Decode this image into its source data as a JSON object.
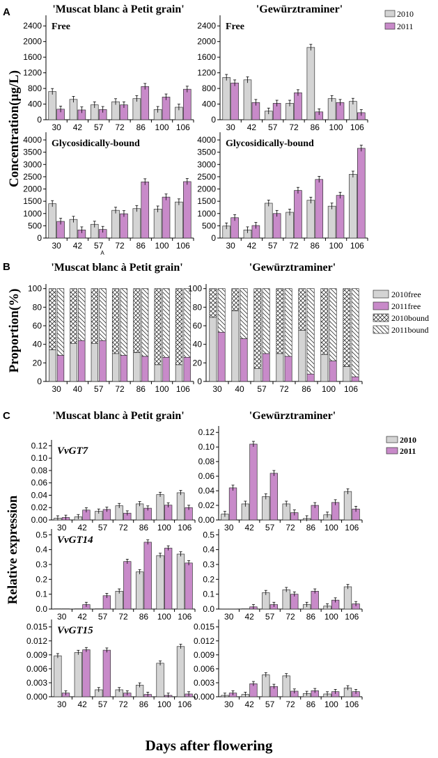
{
  "colors": {
    "c2010": "#d4d4d4",
    "c2011": "#c88ac9",
    "edge": "#333333"
  },
  "labels": {
    "panel_a": "A",
    "panel_b": "B",
    "panel_c": "C",
    "muscat": "'Muscat blanc à Petit grain'",
    "gewurz": "'Gewürztraminer'",
    "free": "Free",
    "bound": "Glycosidically-bound",
    "ylabel_a": "Concentration(μg/L)",
    "ylabel_b": "Proportion(%)",
    "ylabel_c": "Relative expression",
    "xlabel": "Days after flowering",
    "stray_a": "A"
  },
  "legend_a": [
    "2010",
    "2011"
  ],
  "legend_b": [
    "2010free",
    "2011free",
    "2010bound",
    "2011bound"
  ],
  "legend_c": [
    "2010",
    "2011"
  ],
  "chart_data": [
    {
      "id": "a_muscat_free",
      "type": "bar",
      "panel": "A",
      "cultivar": "'Muscat blanc à Petit grain'",
      "title": "Free",
      "categories": [
        "30",
        "42",
        "57",
        "72",
        "86",
        "100",
        "106"
      ],
      "yticks": [
        "0",
        "400",
        "800",
        "1200",
        "1600",
        "2000",
        "2400"
      ],
      "ylim": [
        0,
        2600
      ],
      "series": [
        {
          "name": "2010",
          "values": [
            720,
            520,
            380,
            460,
            540,
            260,
            320
          ]
        },
        {
          "name": "2011",
          "values": [
            270,
            250,
            260,
            380,
            850,
            580,
            780
          ]
        }
      ]
    },
    {
      "id": "a_gewurz_free",
      "type": "bar",
      "panel": "A",
      "cultivar": "'Gewürztraminer'",
      "title": "Free",
      "categories": [
        "30",
        "42",
        "57",
        "72",
        "86",
        "100",
        "106"
      ],
      "yticks": [
        "0",
        "400",
        "800",
        "1200",
        "1600",
        "2000",
        "2400"
      ],
      "ylim": [
        0,
        2600
      ],
      "series": [
        {
          "name": "2010",
          "values": [
            1080,
            1020,
            220,
            420,
            1850,
            540,
            470
          ]
        },
        {
          "name": "2011",
          "values": [
            940,
            440,
            420,
            690,
            200,
            440,
            180
          ]
        }
      ]
    },
    {
      "id": "a_muscat_bound",
      "type": "bar",
      "panel": "A",
      "cultivar": "'Muscat blanc à Petit grain'",
      "title": "Glycosidically-bound",
      "categories": [
        "30",
        "42",
        "57",
        "72",
        "86",
        "100",
        "106"
      ],
      "yticks": [
        "0",
        "500",
        "1000",
        "1500",
        "2000",
        "2500",
        "3000",
        "3500",
        "4000"
      ],
      "ylim": [
        0,
        4200
      ],
      "series": [
        {
          "name": "2010",
          "values": [
            1400,
            760,
            560,
            1130,
            1200,
            1180,
            1470
          ]
        },
        {
          "name": "2011",
          "values": [
            680,
            330,
            350,
            990,
            2290,
            1670,
            2300
          ]
        }
      ]
    },
    {
      "id": "a_gewurz_bound",
      "type": "bar",
      "panel": "A",
      "cultivar": "'Gewürztraminer'",
      "title": "Glycosidically-bound",
      "categories": [
        "30",
        "42",
        "57",
        "72",
        "86",
        "100",
        "106"
      ],
      "yticks": [
        "0",
        "500",
        "1000",
        "1500",
        "2000",
        "2500",
        "3000",
        "3500",
        "4000"
      ],
      "ylim": [
        0,
        4200
      ],
      "series": [
        {
          "name": "2010",
          "values": [
            490,
            330,
            1420,
            1050,
            1540,
            1300,
            2600
          ]
        },
        {
          "name": "2011",
          "values": [
            830,
            510,
            1000,
            1940,
            2390,
            1740,
            3660
          ]
        }
      ]
    },
    {
      "id": "b_muscat",
      "type": "bar",
      "panel": "B",
      "cultivar": "'Muscat blanc à Petit grain'",
      "title": "",
      "categories": [
        "30",
        "40",
        "57",
        "72",
        "86",
        "100",
        "106"
      ],
      "yticks": [
        "0",
        "20",
        "40",
        "60",
        "80",
        "100"
      ],
      "ylim": [
        0,
        102
      ],
      "series": [
        {
          "name": "2010free",
          "values": [
            34,
            41,
            41,
            30,
            31,
            18,
            18
          ]
        },
        {
          "name": "2011free",
          "values": [
            28,
            44,
            44,
            28,
            27,
            26,
            26
          ]
        }
      ]
    },
    {
      "id": "b_gewurz",
      "type": "bar",
      "panel": "B",
      "cultivar": "'Gewürztraminer'",
      "title": "",
      "categories": [
        "30",
        "40",
        "57",
        "72",
        "86",
        "100",
        "106"
      ],
      "yticks": [
        "0",
        "20",
        "40",
        "60",
        "80",
        "100"
      ],
      "ylim": [
        0,
        102
      ],
      "series": [
        {
          "name": "2010free",
          "values": [
            69,
            76,
            14,
            30,
            55,
            29,
            16
          ]
        },
        {
          "name": "2011free",
          "values": [
            53,
            46,
            30,
            27,
            8,
            22,
            5
          ]
        }
      ]
    },
    {
      "id": "c_muscat_gt7",
      "type": "bar",
      "panel": "C",
      "cultivar": "'Muscat blanc à Petit grain'",
      "title": "VvGT7",
      "categories": [
        "30",
        "42",
        "57",
        "72",
        "86",
        "100",
        "106"
      ],
      "yticks": [
        "0.00",
        "0.02",
        "0.04",
        "0.06",
        "0.08",
        "0.10",
        "0.12"
      ],
      "ylim": [
        0,
        0.125
      ],
      "series": [
        {
          "name": "2010",
          "values": [
            0.003,
            0.005,
            0.014,
            0.023,
            0.026,
            0.041,
            0.044
          ]
        },
        {
          "name": "2011",
          "values": [
            0.004,
            0.016,
            0.017,
            0.011,
            0.019,
            0.024,
            0.02
          ]
        }
      ]
    },
    {
      "id": "c_gewurz_gt7",
      "type": "bar",
      "panel": "C",
      "cultivar": "'Gewürztraminer'",
      "title": "",
      "categories": [
        "30",
        "42",
        "57",
        "72",
        "86",
        "100",
        "106"
      ],
      "yticks": [
        "0.00",
        "0.02",
        "0.04",
        "0.06",
        "0.08",
        "0.10",
        "0.12"
      ],
      "ylim": [
        0,
        0.125
      ],
      "series": [
        {
          "name": "2010",
          "values": [
            0.008,
            0.022,
            0.032,
            0.022,
            0.002,
            0.007,
            0.039
          ]
        },
        {
          "name": "2011",
          "values": [
            0.044,
            0.104,
            0.064,
            0.01,
            0.02,
            0.024,
            0.015
          ]
        }
      ]
    },
    {
      "id": "c_muscat_gt14",
      "type": "bar",
      "panel": "C",
      "cultivar": "'Muscat blanc à Petit grain'",
      "title": "VvGT14",
      "categories": [
        "30",
        "42",
        "57",
        "72",
        "86",
        "100",
        "106"
      ],
      "yticks": [
        "0.0",
        "0.1",
        "0.2",
        "0.3",
        "0.4",
        "0.5"
      ],
      "ylim": [
        0,
        0.52
      ],
      "series": [
        {
          "name": "2010",
          "values": [
            0.002,
            0.002,
            0.002,
            0.12,
            0.25,
            0.36,
            0.37
          ]
        },
        {
          "name": "2011",
          "values": [
            0.002,
            0.03,
            0.09,
            0.32,
            0.45,
            0.41,
            0.31
          ]
        }
      ]
    },
    {
      "id": "c_gewurz_gt14",
      "type": "bar",
      "panel": "C",
      "cultivar": "'Gewürztraminer'",
      "title": "",
      "categories": [
        "30",
        "42",
        "57",
        "72",
        "86",
        "100",
        "106"
      ],
      "yticks": [
        "0.0",
        "0.1",
        "0.2",
        "0.3",
        "0.4",
        "0.5"
      ],
      "ylim": [
        0,
        0.52
      ],
      "series": [
        {
          "name": "2010",
          "values": [
            0.001,
            0.002,
            0.11,
            0.13,
            0.03,
            0.02,
            0.15
          ]
        },
        {
          "name": "2011",
          "values": [
            0.001,
            0.015,
            0.03,
            0.1,
            0.12,
            0.06,
            0.035
          ]
        }
      ]
    },
    {
      "id": "c_muscat_gt15",
      "type": "bar",
      "panel": "C",
      "cultivar": "'Muscat blanc à Petit grain'",
      "title": "VvGT15",
      "categories": [
        "30",
        "42",
        "57",
        "72",
        "86",
        "100",
        "106"
      ],
      "yticks": [
        "0.000",
        "0.003",
        "0.006",
        "0.009",
        "0.012",
        "0.015"
      ],
      "ylim": [
        0,
        0.016
      ],
      "series": [
        {
          "name": "2010",
          "values": [
            0.0088,
            0.0095,
            0.0015,
            0.0015,
            0.0025,
            0.0072,
            0.0108
          ]
        },
        {
          "name": "2011",
          "values": [
            0.0008,
            0.0101,
            0.01,
            0.0008,
            0.0005,
            0.0003,
            0.0006
          ]
        }
      ]
    },
    {
      "id": "c_gewurz_gt15",
      "type": "bar",
      "panel": "C",
      "cultivar": "'Gewürztraminer'",
      "title": "",
      "categories": [
        "30",
        "42",
        "57",
        "72",
        "86",
        "100",
        "106"
      ],
      "yticks": [
        "0.000",
        "0.003",
        "0.006",
        "0.009",
        "0.012",
        "0.015"
      ],
      "ylim": [
        0,
        0.016
      ],
      "series": [
        {
          "name": "2010",
          "values": [
            0.0003,
            0.0005,
            0.0047,
            0.0045,
            0.0007,
            0.0006,
            0.0019
          ]
        },
        {
          "name": "2011",
          "values": [
            0.0008,
            0.0028,
            0.0022,
            0.0012,
            0.0013,
            0.0011,
            0.0011
          ]
        }
      ]
    }
  ]
}
